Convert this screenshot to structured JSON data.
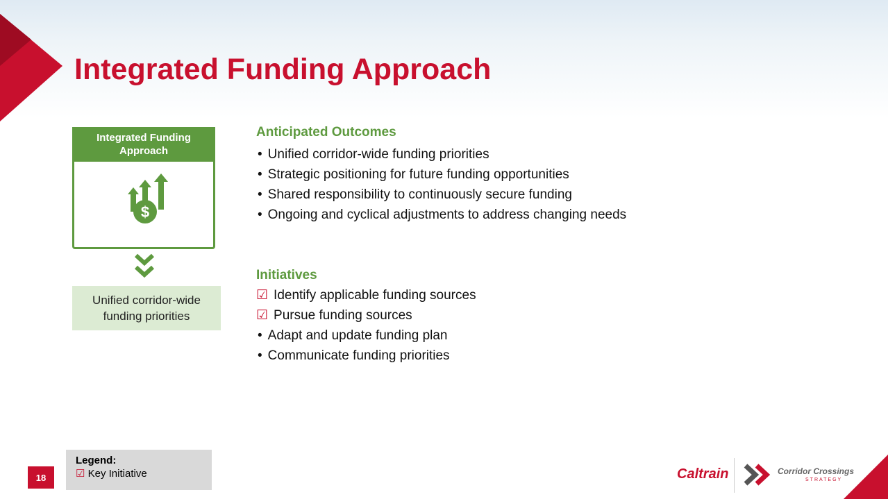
{
  "slide": {
    "title": "Integrated Funding Approach",
    "box_title": "Integrated Funding Approach",
    "box_result": "Unified corridor-wide funding priorities",
    "outcomes": {
      "heading": "Anticipated Outcomes",
      "items": [
        "Unified corridor-wide funding priorities",
        "Strategic positioning for future funding opportunities",
        "Shared responsibility to continuously secure funding",
        "Ongoing and cyclical adjustments to address changing needs"
      ]
    },
    "initiatives": {
      "heading": "Initiatives",
      "items": [
        {
          "text": "Identify applicable funding sources",
          "key": true
        },
        {
          "text": "Pursue funding sources",
          "key": true
        },
        {
          "text": "Adapt and update funding plan",
          "key": false
        },
        {
          "text": "Communicate funding priorities",
          "key": false
        }
      ]
    },
    "legend": {
      "title": "Legend:",
      "item": "Key Initiative"
    },
    "page_number": "18",
    "logo_caltrain": "Caltrain",
    "logo_corridor": "Corridor Crossings",
    "logo_strategy": "STRATEGY"
  }
}
